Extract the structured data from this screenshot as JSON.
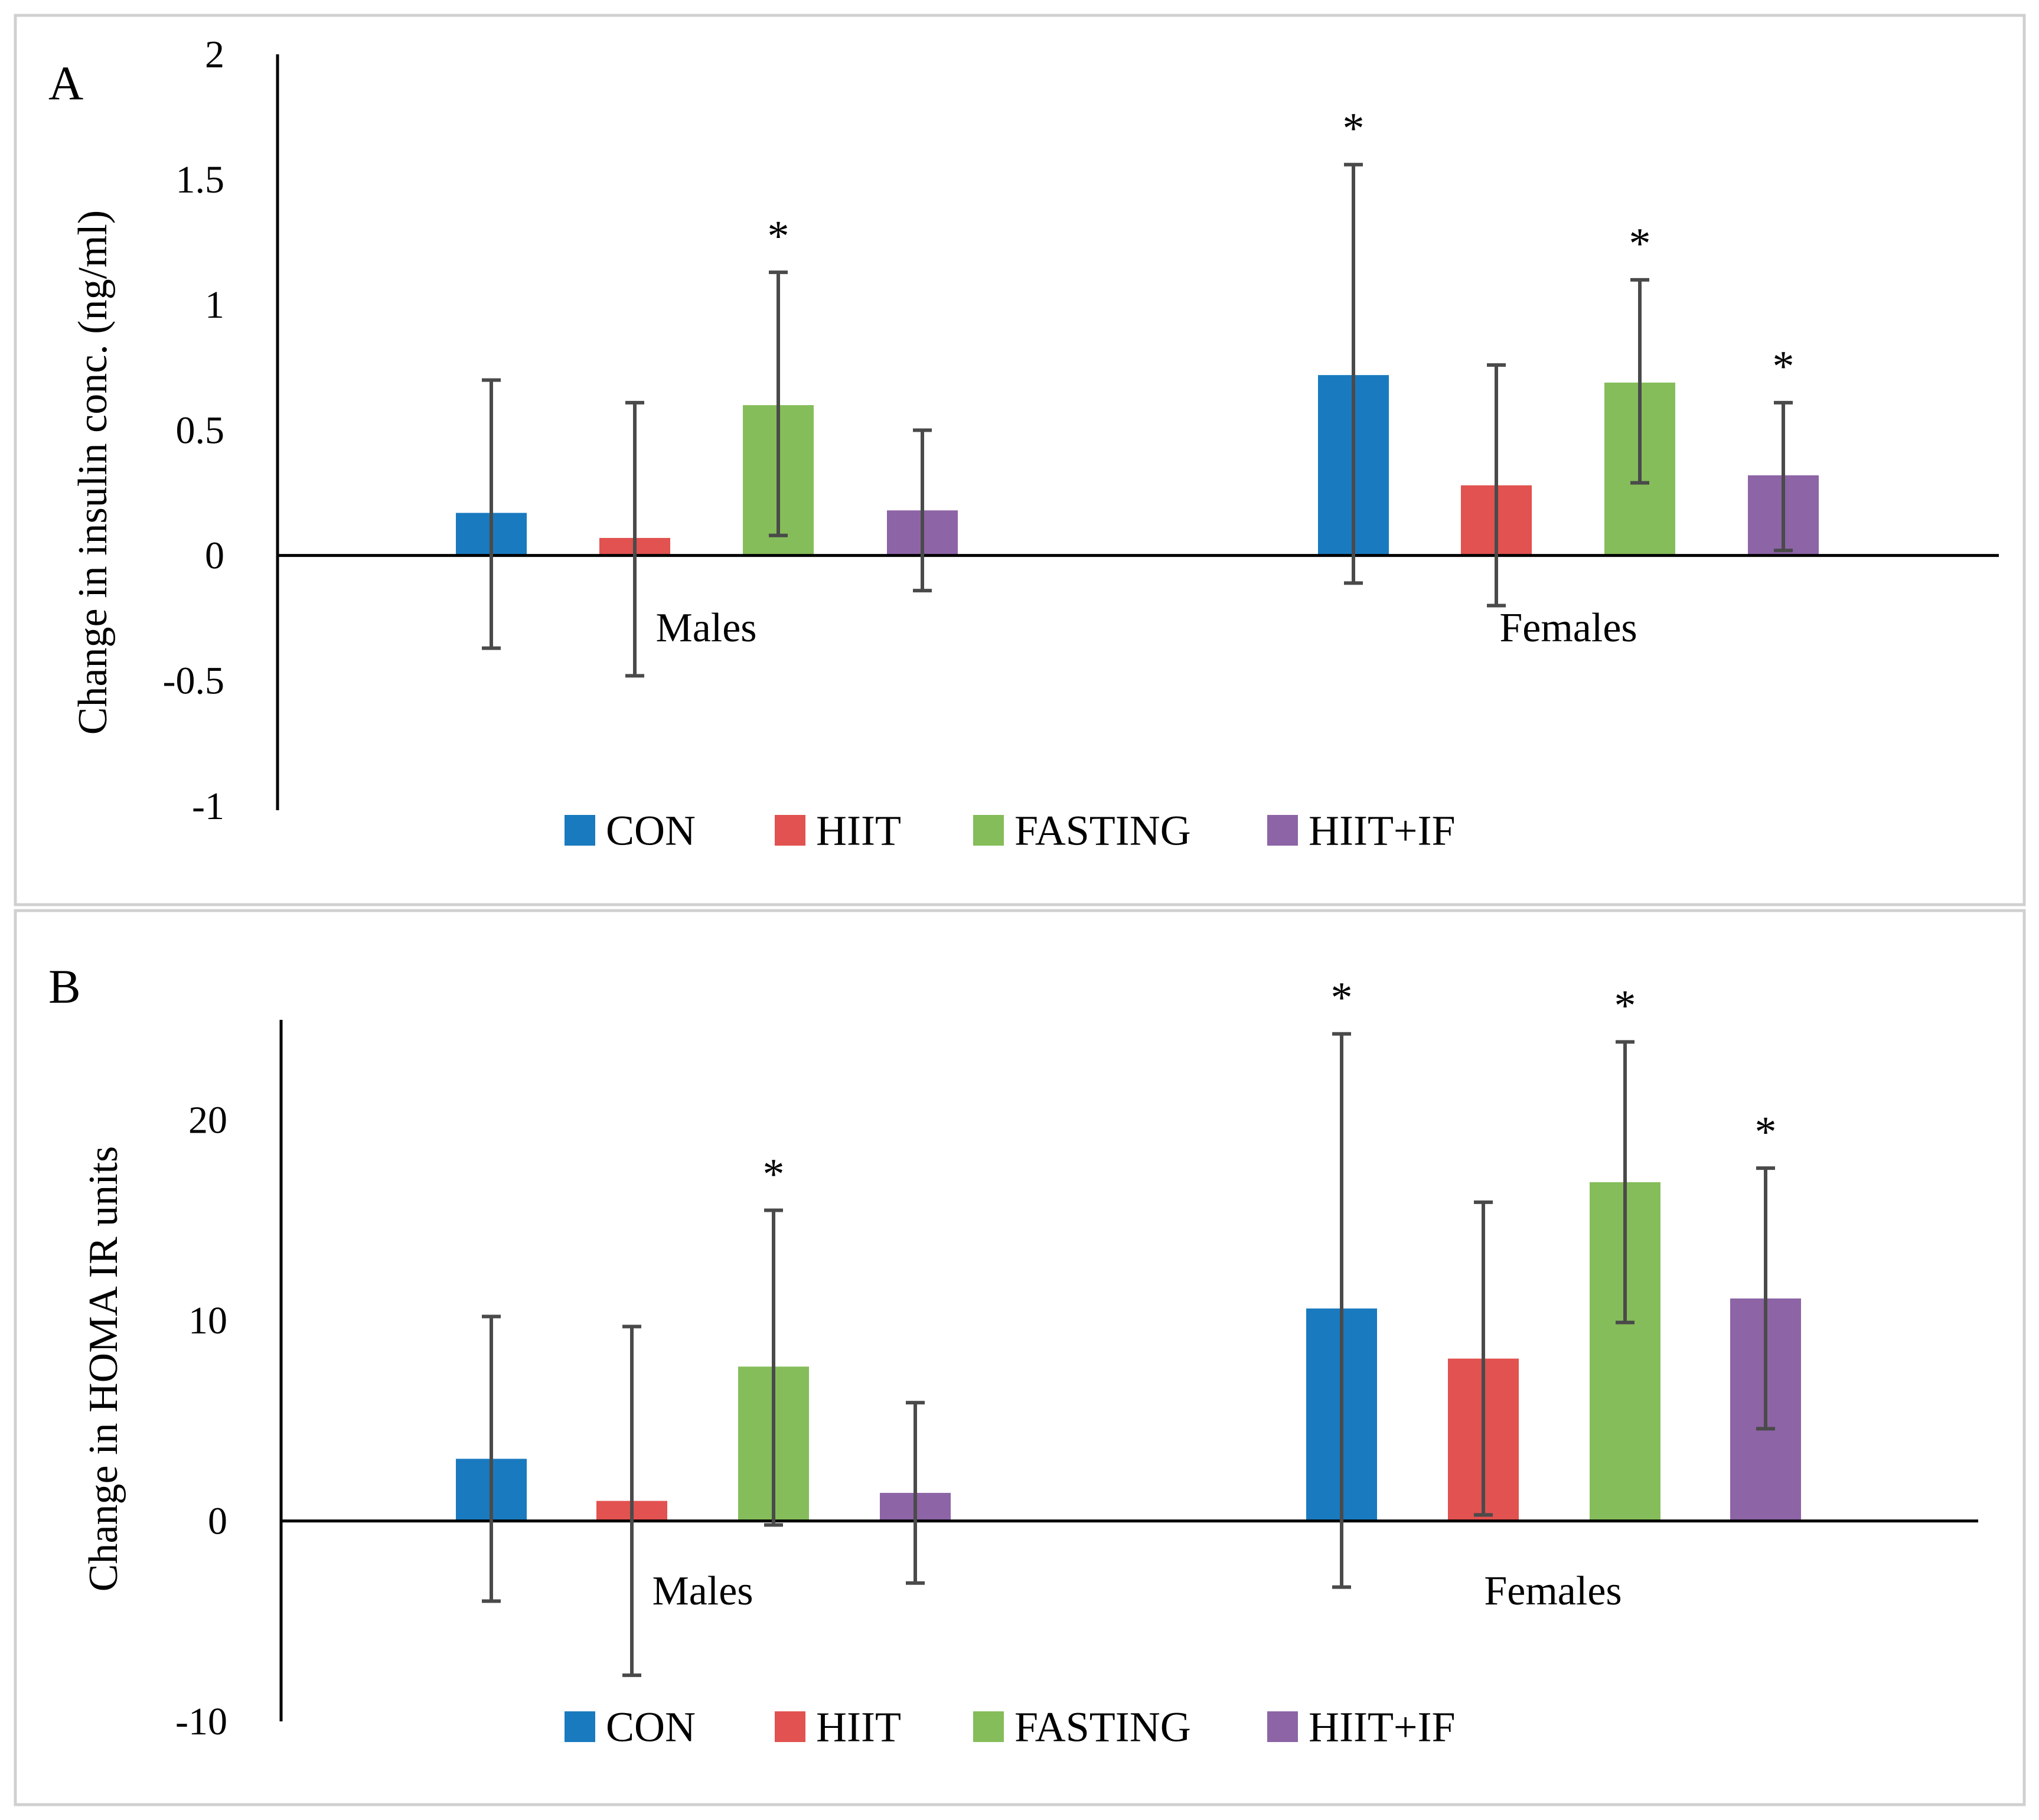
{
  "chart_data": [
    {
      "type": "bar",
      "panel_label": "A",
      "ylabel": "Change in insulin conc. (ng/ml)",
      "xlabel": "",
      "ylim": [
        -1,
        2
      ],
      "yticks": [
        -1,
        -0.5,
        0,
        0.5,
        1,
        1.5,
        2
      ],
      "ytick_labels": [
        "-1",
        "-0.5",
        "0",
        "0.5",
        "1",
        "1.5",
        "2"
      ],
      "categories": [
        "Males",
        "Females"
      ],
      "legend_position": "bottom",
      "grid": false,
      "series": [
        {
          "name": "CON",
          "color": "#1a7abf",
          "values": [
            0.17,
            0.72
          ],
          "err_high": [
            0.7,
            1.56
          ],
          "err_low": [
            -0.37,
            -0.11
          ],
          "significant": [
            false,
            true
          ]
        },
        {
          "name": "HIIT",
          "color": "#e15250",
          "values": [
            0.07,
            0.28
          ],
          "err_high": [
            0.61,
            0.76
          ],
          "err_low": [
            -0.48,
            -0.2
          ],
          "significant": [
            false,
            false
          ]
        },
        {
          "name": "FASTING",
          "color": "#85bd5a",
          "values": [
            0.6,
            0.69
          ],
          "err_high": [
            1.13,
            1.1
          ],
          "err_low": [
            0.08,
            0.29
          ],
          "significant": [
            true,
            true
          ]
        },
        {
          "name": "HIIT+IF",
          "color": "#8d64a6",
          "values": [
            0.18,
            0.32
          ],
          "err_high": [
            0.5,
            0.61
          ],
          "err_low": [
            -0.14,
            0.02
          ],
          "significant": [
            false,
            true
          ]
        }
      ],
      "significance_marker": "*"
    },
    {
      "type": "bar",
      "panel_label": "B",
      "ylabel": "Change in HOMA IR units",
      "xlabel": "",
      "ylim": [
        -10,
        25
      ],
      "yticks": [
        -10,
        0,
        10,
        20
      ],
      "ytick_labels": [
        "-10",
        "0",
        "10",
        "20"
      ],
      "categories": [
        "Males",
        "Females"
      ],
      "legend_position": "bottom",
      "grid": false,
      "series": [
        {
          "name": "CON",
          "color": "#1a7abf",
          "values": [
            3.1,
            10.6
          ],
          "err_high": [
            10.2,
            24.3
          ],
          "err_low": [
            -4.0,
            -3.3
          ],
          "significant": [
            false,
            true
          ]
        },
        {
          "name": "HIIT",
          "color": "#e15250",
          "values": [
            1.0,
            8.1
          ],
          "err_high": [
            9.7,
            15.9
          ],
          "err_low": [
            -7.7,
            0.3
          ],
          "significant": [
            false,
            false
          ]
        },
        {
          "name": "FASTING",
          "color": "#85bd5a",
          "values": [
            7.7,
            16.9
          ],
          "err_high": [
            15.5,
            23.9
          ],
          "err_low": [
            -0.2,
            9.9
          ],
          "significant": [
            true,
            true
          ]
        },
        {
          "name": "HIIT+IF",
          "color": "#8d64a6",
          "values": [
            1.4,
            11.1
          ],
          "err_high": [
            5.9,
            17.6
          ],
          "err_low": [
            -3.1,
            4.6
          ],
          "significant": [
            false,
            true
          ]
        }
      ],
      "significance_marker": "*"
    }
  ]
}
